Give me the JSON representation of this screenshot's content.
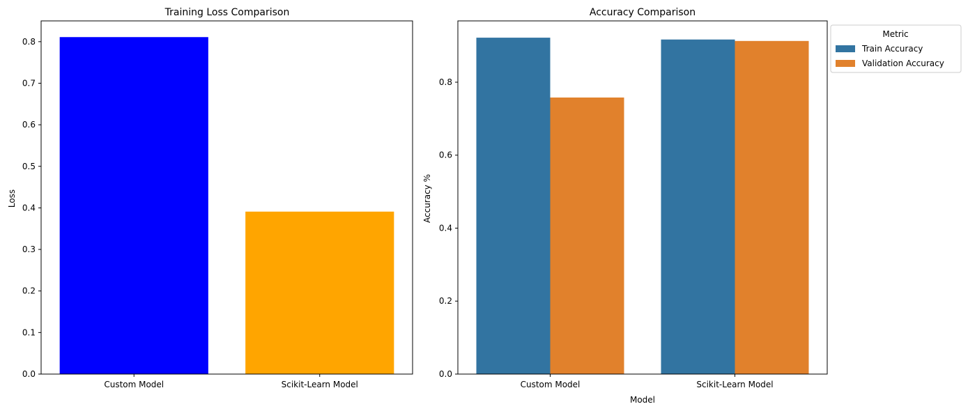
{
  "chart_data": [
    {
      "type": "bar",
      "title": "Training Loss Comparison",
      "xlabel": "",
      "ylabel": "Loss",
      "categories": [
        "Custom Model",
        "Scikit-Learn Model"
      ],
      "values": [
        0.811,
        0.391
      ],
      "colors": [
        "#0000ff",
        "#ffa500"
      ],
      "ylim": [
        0,
        0.85
      ],
      "yticks": [
        0.0,
        0.1,
        0.2,
        0.3,
        0.4,
        0.5,
        0.6,
        0.7,
        0.8
      ],
      "ytick_labels": [
        "0.0",
        "0.1",
        "0.2",
        "0.3",
        "0.4",
        "0.5",
        "0.6",
        "0.7",
        "0.8"
      ],
      "grid": false
    },
    {
      "type": "bar",
      "title": "Accuracy Comparison",
      "xlabel": "Model",
      "ylabel": "Accuracy %",
      "categories": [
        "Custom Model",
        "Scikit-Learn Model"
      ],
      "series": [
        {
          "name": "Train Accuracy",
          "values": [
            0.922,
            0.917
          ],
          "color": "#3274a1"
        },
        {
          "name": "Validation Accuracy",
          "values": [
            0.758,
            0.913
          ],
          "color": "#e1812c"
        }
      ],
      "ylim": [
        0,
        0.968
      ],
      "yticks": [
        0.0,
        0.2,
        0.4,
        0.6,
        0.8
      ],
      "ytick_labels": [
        "0.0",
        "0.2",
        "0.4",
        "0.6",
        "0.8"
      ],
      "legend_title": "Metric",
      "legend_position": "outside upper right",
      "grid": false
    }
  ]
}
